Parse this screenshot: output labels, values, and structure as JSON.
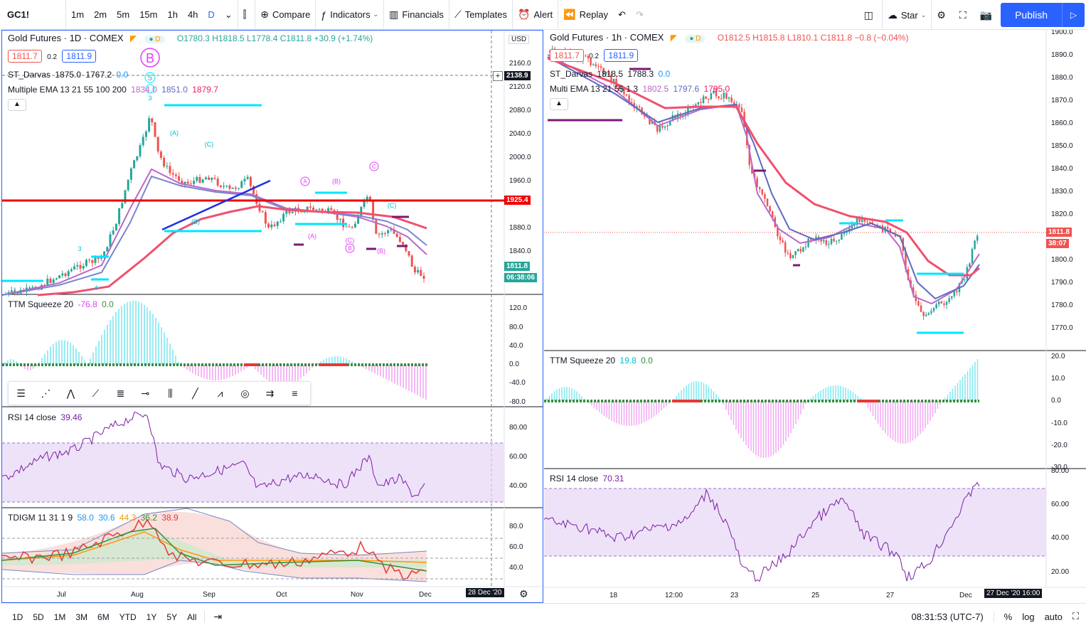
{
  "toolbar": {
    "symbol": "GC1!",
    "intervals": [
      "1m",
      "2m",
      "5m",
      "15m",
      "1h",
      "4h",
      "D"
    ],
    "active_interval": "D",
    "compare": "Compare",
    "indicators": "Indicators",
    "financials": "Financials",
    "templates": "Templates",
    "alert": "Alert",
    "replay": "Replay",
    "star": "Star",
    "publish": "Publish"
  },
  "left_chart": {
    "title": "Gold Futures · 1D · COMEX",
    "ohlc": {
      "o": "O1780.3",
      "h": "H1818.5",
      "l": "L1778.4",
      "c": "C1811.8",
      "chg": "+30.9 (+1.74%)"
    },
    "bid": "1811.7",
    "spread": "0.2",
    "ask": "1811.9",
    "darvas": {
      "label": "ST_Darvas",
      "v1": "1875.0",
      "v2": "1767.2",
      "v3": "0.0"
    },
    "ema": {
      "label": "Multiple EMA 13 21 55 100 200",
      "v1": "1834.0",
      "v2": "1851.0",
      "v3": "1879.7"
    },
    "currency": "USD",
    "price_ticks": [
      "2160.0",
      "2120.0",
      "2080.0",
      "2040.0",
      "2000.0",
      "1960.0",
      "1880.0",
      "1840.0"
    ],
    "tags": {
      "crosshair": "2138.9",
      "red_line": "1925.4",
      "last": "1811.8",
      "countdown": "06:38:06"
    },
    "wave_labels": {
      "big_b": "B",
      "five": "5",
      "three_top": "3",
      "a1": "(A)",
      "c1": "(C)",
      "a_circ": "A",
      "b_par": "(B)",
      "c_circ": "C",
      "b1": "(B)",
      "a2": "(A)",
      "c2": "(C)",
      "b_circ": "B",
      "b2": "(B)",
      "c3": "(C)",
      "n3": "3",
      "n1": "1",
      "n4": "4"
    },
    "ttm": {
      "label": "TTM Squeeze 20",
      "v1": "-76.8",
      "v2": "0.0",
      "ticks": [
        "120.0",
        "80.0",
        "40.0",
        "0.0",
        "-40.0",
        "-80.0"
      ]
    },
    "rsi": {
      "label": "RSI 14 close",
      "v": "39.46",
      "ticks": [
        "80.00",
        "60.00",
        "40.00"
      ]
    },
    "tdi": {
      "label": "TDIGM 11 31 1 9",
      "v1": "58.0",
      "v2": "30.6",
      "v3": "44.3",
      "v4": "36.2",
      "v5": "38.9",
      "ticks": [
        "80.0",
        "60.0",
        "40.0"
      ]
    },
    "time_ticks": [
      "Jul",
      "Aug",
      "Sep",
      "Oct",
      "Nov",
      "Dec"
    ],
    "date_tag": "28 Dec '20"
  },
  "right_chart": {
    "title": "Gold Futures · 1h · COMEX",
    "ohlc": {
      "o": "O1812.5",
      "h": "H1815.8",
      "l": "L1810.1",
      "c": "C1811.8",
      "chg": "−0.8 (−0.04%)"
    },
    "bid": "1811.7",
    "spread": "0.2",
    "ask": "1811.9",
    "darvas": {
      "label": "ST_Darvas",
      "v1": "1818.5",
      "v2": "1788.3",
      "v3": "0.0"
    },
    "ema": {
      "label": "Multi EMA 13 21 55 1 3",
      "v1": "1802.5",
      "v2": "1797.6",
      "v3": "1795.0"
    },
    "price_ticks": [
      "1900.0",
      "1890.0",
      "1880.0",
      "1870.0",
      "1860.0",
      "1850.0",
      "1840.0",
      "1830.0",
      "1820.0",
      "1810.0",
      "1800.0",
      "1790.0",
      "1780.0",
      "1770.0"
    ],
    "tags": {
      "last": "1811.8",
      "countdown": "38:07"
    },
    "ttm": {
      "label": "TTM Squeeze 20",
      "v1": "19.8",
      "v2": "0.0",
      "ticks": [
        "20.0",
        "10.0",
        "0.0",
        "-10.0",
        "-20.0",
        "-30.0"
      ]
    },
    "rsi": {
      "label": "RSI 14 close",
      "v": "70.31",
      "ticks": [
        "80.00",
        "60.00",
        "40.00",
        "20.00"
      ]
    },
    "time_ticks": [
      "18",
      "12:00",
      "23",
      "25",
      "27",
      "Dec"
    ],
    "date_tag": "27 Dec '20  16:00"
  },
  "bottom": {
    "ranges": [
      "1D",
      "5D",
      "1M",
      "3M",
      "6M",
      "YTD",
      "1Y",
      "5Y",
      "All"
    ],
    "clock": "08:31:53 (UTC-7)",
    "percent": "%",
    "log": "log",
    "auto": "auto"
  },
  "colors": {
    "accent": "#2962ff",
    "red_line": "#f00000",
    "cyan": "#00e5ff",
    "up": "#26a69a",
    "down": "#ef5350",
    "ema_red": "#f0506e"
  }
}
